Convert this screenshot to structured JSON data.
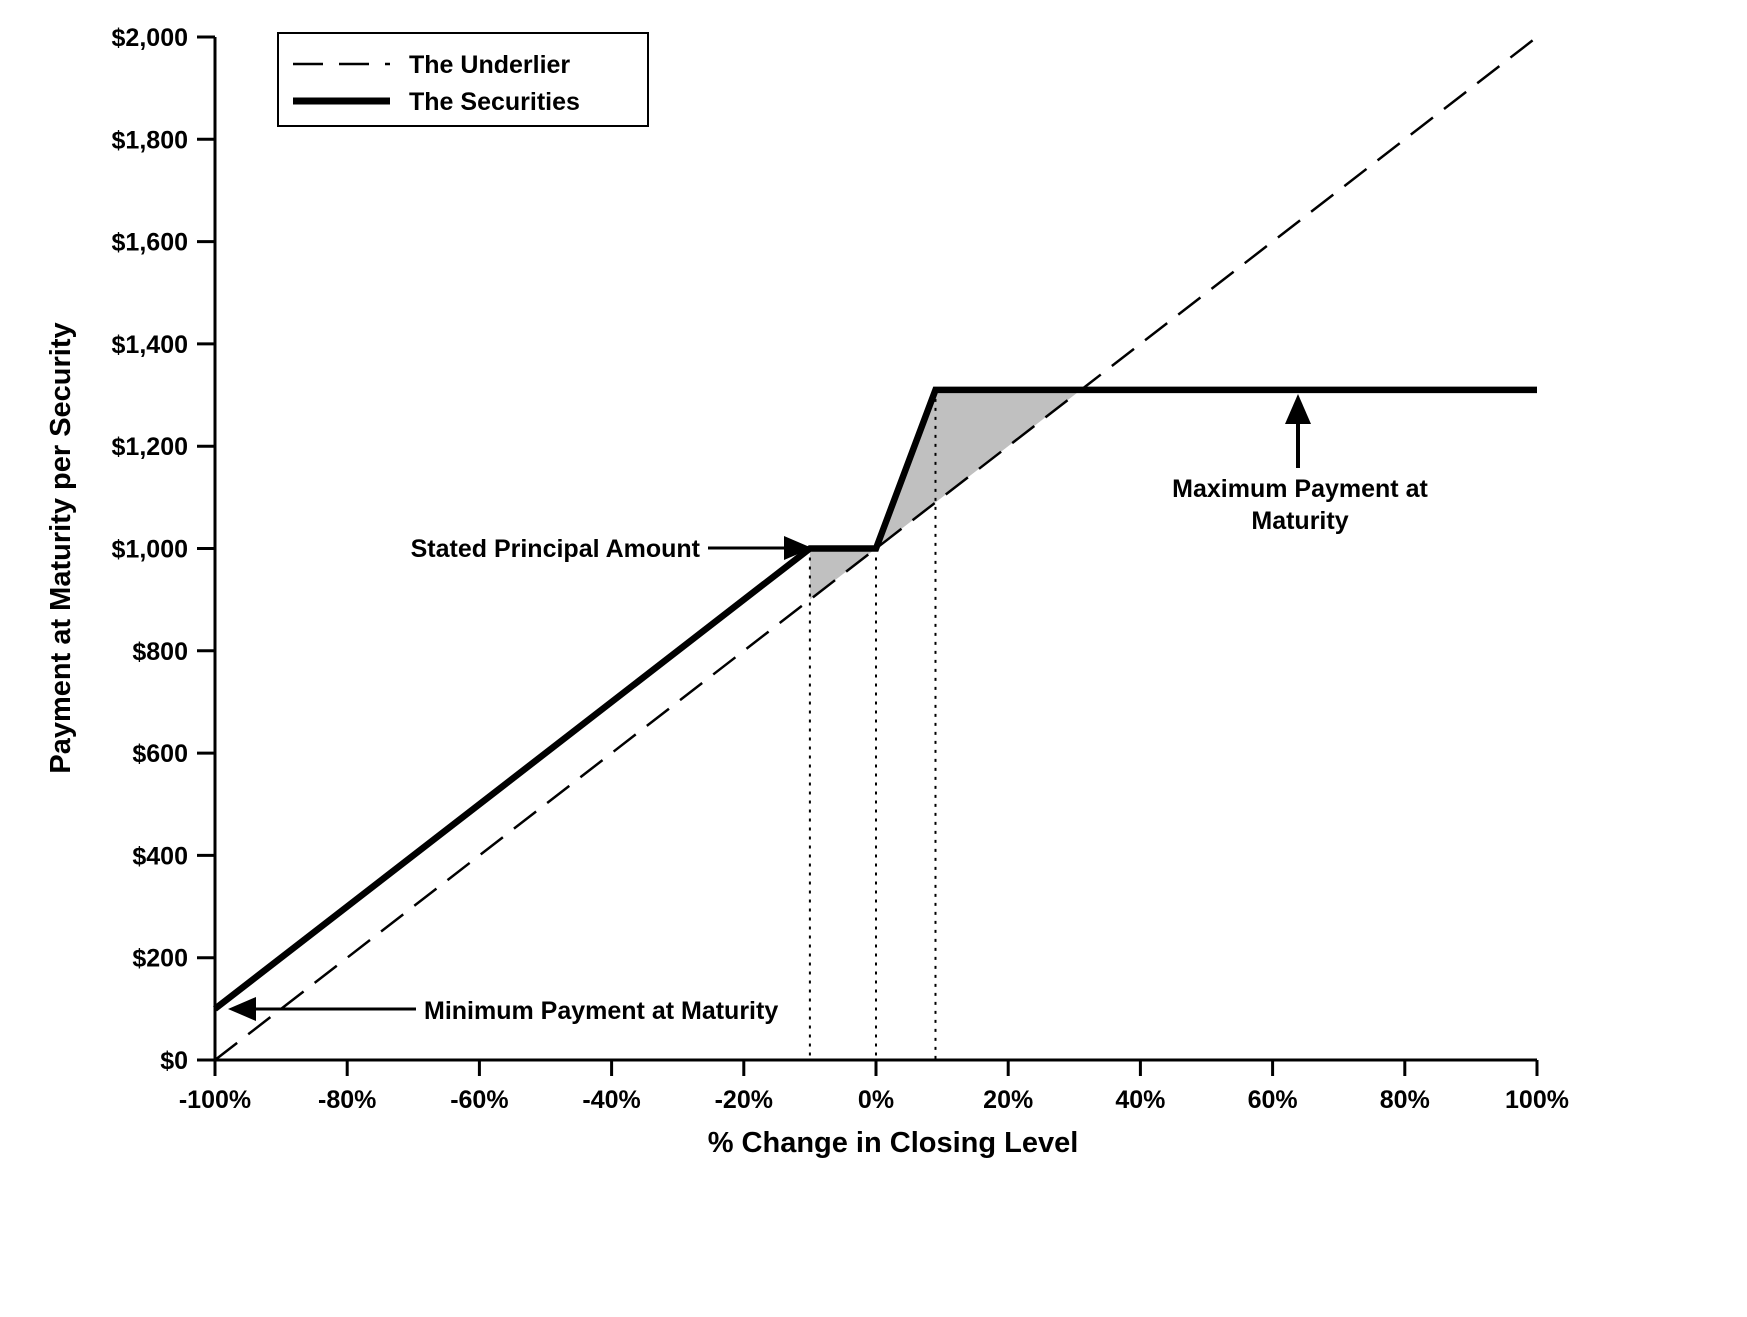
{
  "chart_data": {
    "type": "line",
    "title": "",
    "xlabel": "% Change in Closing Level",
    "ylabel": "Payment at Maturity per Security",
    "xlim": [
      -100,
      100
    ],
    "ylim": [
      0,
      2000
    ],
    "grid": false,
    "x_ticks": [
      -100,
      -80,
      -60,
      -40,
      -20,
      0,
      20,
      40,
      60,
      80,
      100
    ],
    "x_tick_labels": [
      "-100%",
      "-80%",
      "-60%",
      "-40%",
      "-20%",
      "0%",
      "20%",
      "40%",
      "60%",
      "80%",
      "100%"
    ],
    "y_ticks": [
      0,
      200,
      400,
      600,
      800,
      1000,
      1200,
      1400,
      1600,
      1800,
      2000
    ],
    "y_tick_labels": [
      "$0",
      "$200",
      "$400",
      "$600",
      "$800",
      "$1,000",
      "$1,200",
      "$1,400",
      "$1,600",
      "$1,800",
      "$2,000"
    ],
    "legend": {
      "position": "top-left",
      "entries": [
        {
          "label": "The Underlier",
          "style": "dashed"
        },
        {
          "label": "The Securities",
          "style": "solid-thick"
        }
      ]
    },
    "series": [
      {
        "name": "The Underlier",
        "style": "dashed",
        "points": [
          [
            -100,
            0
          ],
          [
            100,
            2000
          ]
        ]
      },
      {
        "name": "The Securities",
        "style": "solid",
        "points": [
          [
            -100,
            100
          ],
          [
            -10,
            1000
          ],
          [
            0,
            1000
          ],
          [
            9,
            1310
          ],
          [
            100,
            1310
          ]
        ]
      }
    ],
    "key_values": {
      "minimum_payment": 100,
      "stated_principal_amount": 1000,
      "maximum_payment": 1310,
      "buffer_pct": -10,
      "cap_kink_pct": 9,
      "underlier_cross_pct": 31
    },
    "shaded_regions": [
      {
        "points": [
          [
            -10,
            1000
          ],
          [
            0,
            1000
          ],
          [
            -10,
            900
          ]
        ],
        "color": "#c0c0c0"
      },
      {
        "points": [
          [
            0,
            1000
          ],
          [
            9,
            1310
          ],
          [
            31,
            1310
          ]
        ],
        "color": "#c0c0c0"
      }
    ],
    "dotted_vlines": [
      {
        "x": -10,
        "top": 1000
      },
      {
        "x": 0,
        "top": 1000
      },
      {
        "x": 9,
        "top": 1310
      }
    ],
    "annotations": [
      {
        "id": "stated-principal-amount",
        "text": "Stated Principal Amount",
        "arrow": "right"
      },
      {
        "id": "maximum-payment",
        "lines": [
          "Maximum Payment at",
          "Maturity"
        ],
        "arrow": "up"
      },
      {
        "id": "minimum-payment",
        "text": "Minimum Payment at Maturity",
        "arrow": "left"
      }
    ]
  },
  "colors": {
    "ink": "#000000",
    "shade": "#c0c0c0",
    "background": "#ffffff"
  }
}
